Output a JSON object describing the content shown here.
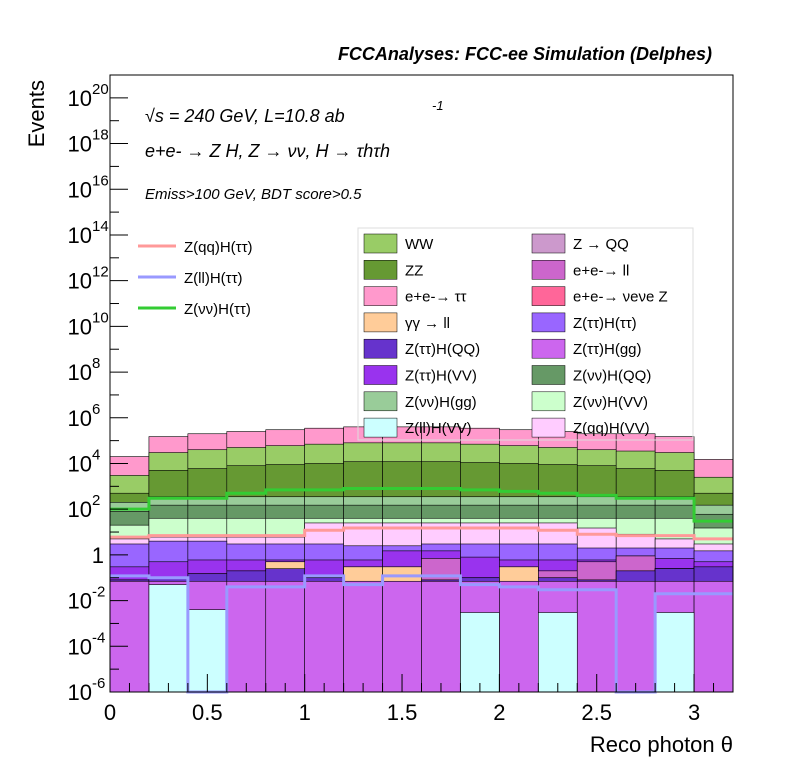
{
  "chart_data": {
    "type": "area",
    "title": "FCCAnalyses: FCC-ee Simulation (Delphes)",
    "xlabel": "Reco photon θ",
    "ylabel": "Events",
    "xlim": [
      0,
      3.2
    ],
    "ylim": [
      1e-06,
      1e+21
    ],
    "yscale": "log",
    "x_ticks": [
      "0",
      "0.5",
      "1",
      "1.5",
      "2",
      "2.5",
      "3"
    ],
    "y_ticks": [
      {
        "base": "10",
        "exp": "20",
        "v": 1e+20
      },
      {
        "base": "10",
        "exp": "18",
        "v": 1e+18
      },
      {
        "base": "10",
        "exp": "16",
        "v": 1e+16
      },
      {
        "base": "10",
        "exp": "14",
        "v": 100000000000000.0
      },
      {
        "base": "10",
        "exp": "12",
        "v": 1000000000000.0
      },
      {
        "base": "10",
        "exp": "10",
        "v": 10000000000.0
      },
      {
        "base": "10",
        "exp": "8",
        "v": 100000000.0
      },
      {
        "base": "10",
        "exp": "6",
        "v": 1000000.0
      },
      {
        "base": "10",
        "exp": "4",
        "v": 10000.0
      },
      {
        "base": "10",
        "exp": "2",
        "v": 100.0
      },
      {
        "base": "1",
        "exp": "",
        "v": 1
      },
      {
        "base": "10",
        "exp": "-2",
        "v": 0.01
      },
      {
        "base": "10",
        "exp": "-4",
        "v": 0.0001
      },
      {
        "base": "10",
        "exp": "-6",
        "v": 1e-06
      }
    ],
    "annotations": {
      "energy": "√s = 240 GeV, L=10.8 ab",
      "energy_exp": "-1",
      "process": "e+e- → Z H, Z → νν, H → τhτh",
      "selection": "Emiss>100 GeV, BDT score>0.5"
    },
    "bin_edges": [
      0,
      0.2,
      0.4,
      0.6,
      0.8,
      1.0,
      1.2,
      1.4,
      1.6,
      1.8,
      2.0,
      2.2,
      2.4,
      2.6,
      2.8,
      3.0,
      3.2
    ],
    "stack_boundaries": [
      {
        "name": "Z(ll)H(VV)",
        "color": "#ccffff",
        "values": [
          1e-06,
          0.05,
          0.004,
          1e-06,
          1e-06,
          1e-06,
          1e-06,
          1e-06,
          1e-06,
          0.003,
          1e-06,
          0.003,
          1e-06,
          1e-06,
          0.003,
          1e-06
        ]
      },
      {
        "name": "Z(ττ)H(gg)",
        "color": "#cc66ee",
        "values": [
          0.07,
          0.07,
          0.07,
          0.07,
          0.07,
          0.07,
          0.07,
          0.07,
          0.07,
          0.07,
          0.07,
          0.07,
          0.07,
          0.07,
          0.07,
          0.07
        ]
      },
      {
        "name": "Z(ττ)H(QQ)",
        "color": "#6633cc",
        "values": [
          0.08,
          0.1,
          0.15,
          0.2,
          0.25,
          0.1,
          0.07,
          0.01,
          0.08,
          0.1,
          0.07,
          0.1,
          0.08,
          0.2,
          0.25,
          0.3
        ]
      },
      {
        "name": "γγ → ll",
        "color": "#ffcc99",
        "values": [
          0.08,
          0.1,
          0.15,
          0.2,
          0.5,
          0.1,
          0.3,
          0.3,
          0.08,
          0.1,
          0.3,
          0.1,
          0.08,
          0.2,
          0.25,
          0.3
        ]
      },
      {
        "name": "e+e- → ll",
        "color": "#cc66cc",
        "values": [
          0.08,
          0.1,
          0.15,
          0.2,
          0.5,
          0.1,
          0.3,
          0.3,
          0.7,
          0.1,
          0.3,
          0.2,
          0.5,
          0.9,
          0.25,
          0.3
        ]
      },
      {
        "name": "Z(ττ)H(VV)",
        "color": "#9933ee",
        "values": [
          0.3,
          0.5,
          0.6,
          0.6,
          0.6,
          0.6,
          0.6,
          1.5,
          1.5,
          0.8,
          0.6,
          0.6,
          0.6,
          0.9,
          0.7,
          0.5
        ]
      },
      {
        "name": "Z(ττ)H(ττ)",
        "color": "#9966ff",
        "values": [
          3,
          4,
          4,
          3,
          3,
          3,
          2.5,
          2.5,
          3,
          3,
          3,
          3,
          2,
          2,
          2,
          1.5
        ]
      },
      {
        "name": "Z(qq)H(VV)",
        "color": "#ffccff",
        "values": [
          5,
          6,
          6,
          6,
          6,
          25,
          25,
          25,
          25,
          25,
          25,
          25,
          15,
          8,
          5,
          3
        ]
      },
      {
        "name": "Z(νν)H(VV)",
        "color": "#ccffcc",
        "values": [
          20,
          40,
          40,
          40,
          40,
          40,
          40,
          40,
          40,
          40,
          40,
          40,
          40,
          40,
          40,
          15
        ]
      },
      {
        "name": "Z(νν)H(QQ)",
        "color": "#669966",
        "values": [
          80,
          150,
          150,
          150,
          150,
          150,
          150,
          150,
          150,
          150,
          150,
          150,
          150,
          150,
          150,
          60
        ]
      },
      {
        "name": "Z(νν)H(gg)",
        "color": "#99cc99",
        "values": [
          200,
          350,
          350,
          350,
          350,
          350,
          350,
          350,
          350,
          350,
          350,
          350,
          350,
          350,
          350,
          150
        ]
      },
      {
        "name": "ZZ",
        "color": "#669933",
        "values": [
          500,
          5000,
          6000,
          8000,
          9000,
          10000,
          12000,
          12000,
          12000,
          11000,
          10000,
          9000,
          8000,
          6000,
          5000,
          500
        ]
      },
      {
        "name": "WW",
        "color": "#99cc66",
        "values": [
          3000,
          30000,
          40000,
          50000,
          60000,
          70000,
          80000,
          80000,
          80000,
          70000,
          60000,
          50000,
          40000,
          35000,
          30000,
          2500
        ]
      },
      {
        "name": "e+e- → ττ",
        "color": "#ff99cc",
        "values": [
          20000,
          150000,
          200000,
          250000,
          300000,
          350000,
          400000,
          400000,
          400000,
          350000,
          300000,
          250000,
          200000,
          200000,
          150000,
          15000
        ]
      }
    ],
    "overlay_lines": [
      {
        "name": "Z(qq)H(ττ)",
        "color": "#ff9999",
        "values": [
          6,
          7,
          7,
          7,
          7,
          12,
          15,
          15,
          15,
          15,
          15,
          12,
          8,
          7,
          7,
          5
        ]
      },
      {
        "name": "Z(ll)H(ττ)",
        "color": "#9999ff",
        "values": [
          0.12,
          0.1,
          1e-06,
          0.04,
          0.04,
          0.12,
          0.05,
          0.12,
          0.12,
          0.05,
          0.04,
          0.03,
          0.03,
          1e-06,
          0.02,
          0.02
        ]
      },
      {
        "name": "Z(νν)H(ττ)",
        "color": "#33cc33",
        "values": [
          100,
          300,
          300,
          500,
          700,
          700,
          800,
          800,
          800,
          700,
          600,
          500,
          400,
          300,
          300,
          30
        ]
      }
    ],
    "line_legend": [
      {
        "label": "Z(qq)H(ττ)",
        "color": "#ff9999"
      },
      {
        "label": "Z(ll)H(ττ)",
        "color": "#9999ff"
      },
      {
        "label": "Z(νν)H(ττ)",
        "color": "#33cc33"
      }
    ],
    "legend_col1": [
      {
        "label": "WW",
        "color": "#99cc66"
      },
      {
        "label": "ZZ",
        "color": "#669933"
      },
      {
        "label": "e+e-→ ττ",
        "color": "#ff99cc"
      },
      {
        "label": "γγ → ll",
        "color": "#ffcc99"
      },
      {
        "label": "Z(ττ)H(QQ)",
        "color": "#6633cc"
      },
      {
        "label": "Z(ττ)H(VV)",
        "color": "#9933ee"
      },
      {
        "label": "Z(νν)H(gg)",
        "color": "#99cc99"
      },
      {
        "label": "Z(ll)H(VV)",
        "color": "#ccffff"
      }
    ],
    "legend_col2": [
      {
        "label": "Z → QQ",
        "color": "#cc99cc"
      },
      {
        "label": "e+e-→ ll",
        "color": "#cc66cc"
      },
      {
        "label": "e+e-→ νeνe Z",
        "color": "#ff6699"
      },
      {
        "label": "Z(ττ)H(ττ)",
        "color": "#9966ff"
      },
      {
        "label": "Z(ττ)H(gg)",
        "color": "#cc66ee"
      },
      {
        "label": "Z(νν)H(QQ)",
        "color": "#669966"
      },
      {
        "label": "Z(νν)H(VV)",
        "color": "#ccffcc"
      },
      {
        "label": "Z(qq)H(VV)",
        "color": "#ffccff"
      }
    ]
  }
}
